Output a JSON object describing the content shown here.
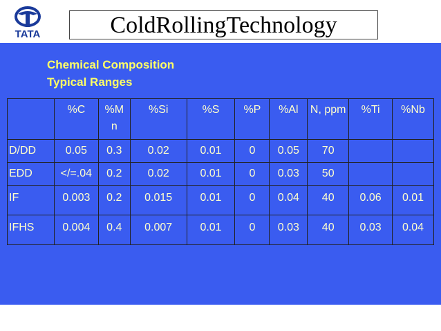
{
  "header": {
    "logo": "TATA",
    "title": "ColdRollingTechnology"
  },
  "subtitle": [
    "Chemical Composition",
    "Typical Ranges"
  ],
  "table": {
    "columns": [
      null,
      "%C",
      "%Mn",
      "%Si",
      "%S",
      "%P",
      "%Al",
      "N, ppm",
      "%Ti",
      "%Nb"
    ],
    "rows": [
      [
        "D/DD",
        "0.05",
        "0.3",
        "0.02",
        "0.01",
        "0",
        "0.05",
        "70",
        null,
        null
      ],
      [
        "EDD",
        "</=.04",
        "0.2",
        "0.02",
        "0.01",
        "0",
        "0.03",
        "50",
        null,
        null
      ],
      [
        "IF",
        "0.003",
        "0.2",
        "0.015",
        "0.01",
        "0",
        "0.04",
        "40",
        "0.06",
        "0.01"
      ],
      [
        "IFHS",
        "0.004",
        "0.4",
        "0.007",
        "0.01",
        "0",
        "0.03",
        "40",
        "0.03",
        "0.04"
      ]
    ]
  }
}
